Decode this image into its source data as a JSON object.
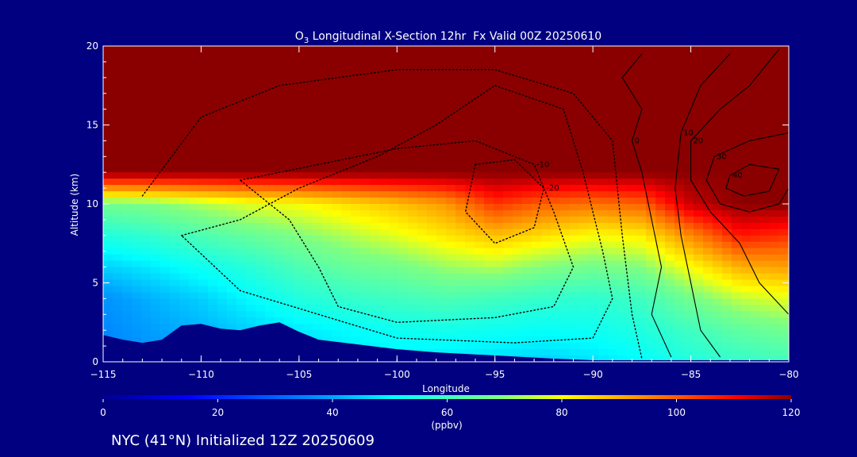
{
  "colors": {
    "background": "#000080",
    "text": "#ffffff",
    "terrain": "#000080",
    "contour": "#000000"
  },
  "chart_data": {
    "type": "heatmap",
    "title": "O3 Longitudinal X-Section 12hr  Fx Valid 00Z 20250610",
    "title_parts": {
      "main": "O",
      "subscript": "3",
      "rest": " Longitudinal X-Section 12hr  Fx Valid 00Z 20250610"
    },
    "xlabel": "Longitude",
    "ylabel": "Altitude (km)",
    "xlim": [
      -115,
      -80
    ],
    "ylim": [
      0,
      20
    ],
    "x_ticks": [
      -115,
      -110,
      -105,
      -100,
      -95,
      -90,
      -85,
      -80
    ],
    "x_tick_labels": [
      "−115",
      "−110",
      "−105",
      "−100",
      "−95",
      "−90",
      "−85",
      "−80"
    ],
    "y_ticks": [
      0,
      5,
      10,
      15,
      20
    ],
    "y_tick_labels": [
      "0",
      "5",
      "10",
      "15",
      "20"
    ],
    "colorbar": {
      "label": "(ppbv)",
      "range": [
        0,
        120
      ],
      "ticks": [
        0,
        20,
        40,
        60,
        80,
        100,
        120
      ],
      "tick_labels": [
        "0",
        "20",
        "40",
        "60",
        "80",
        "100",
        "120"
      ]
    },
    "field": {
      "variable": "O3 (ppbv)",
      "longitudes": [
        -115,
        -112.5,
        -110,
        -107.5,
        -105,
        -102.5,
        -100,
        -97.5,
        -95,
        -92.5,
        -90,
        -87.5,
        -85,
        -82.5,
        -80
      ],
      "altitudes_km": [
        0,
        2,
        4,
        6,
        8,
        10,
        12,
        14,
        16,
        18,
        20
      ],
      "values_ppbv": [
        [
          35,
          37,
          38,
          40,
          45,
          47,
          48,
          47,
          46,
          45,
          47,
          50,
          55,
          58,
          60
        ],
        [
          36,
          40,
          42,
          45,
          48,
          50,
          52,
          53,
          52,
          51,
          52,
          55,
          60,
          65,
          68
        ],
        [
          38,
          42,
          45,
          50,
          55,
          58,
          60,
          62,
          60,
          58,
          57,
          60,
          68,
          75,
          78
        ],
        [
          45,
          48,
          52,
          56,
          62,
          66,
          68,
          72,
          74,
          70,
          68,
          70,
          80,
          90,
          92
        ],
        [
          55,
          58,
          62,
          66,
          70,
          74,
          78,
          83,
          88,
          84,
          80,
          82,
          95,
          108,
          105
        ],
        [
          68,
          70,
          74,
          78,
          80,
          84,
          88,
          93,
          105,
          100,
          98,
          100,
          115,
          120,
          120
        ],
        [
          120,
          120,
          120,
          120,
          120,
          120,
          120,
          120,
          120,
          120,
          120,
          120,
          120,
          120,
          120
        ],
        [
          120,
          120,
          120,
          120,
          120,
          120,
          120,
          120,
          120,
          120,
          120,
          120,
          120,
          120,
          120
        ],
        [
          120,
          120,
          120,
          120,
          120,
          120,
          120,
          120,
          120,
          120,
          120,
          120,
          120,
          120,
          120
        ],
        [
          120,
          120,
          120,
          120,
          120,
          120,
          120,
          120,
          120,
          120,
          120,
          120,
          120,
          120,
          120
        ],
        [
          120,
          120,
          120,
          120,
          120,
          120,
          120,
          120,
          120,
          120,
          120,
          120,
          120,
          120,
          120
        ]
      ]
    },
    "terrain_km": {
      "longitudes": [
        -115,
        -114,
        -113,
        -112,
        -111,
        -110,
        -109,
        -108,
        -107,
        -106,
        -105,
        -104,
        -102,
        -100,
        -98,
        -95,
        -92,
        -90,
        -85,
        -80
      ],
      "heights": [
        1.7,
        1.4,
        1.2,
        1.4,
        2.3,
        2.4,
        2.1,
        2.0,
        2.3,
        2.5,
        1.9,
        1.4,
        1.1,
        0.8,
        0.6,
        0.4,
        0.2,
        0.1,
        0.1,
        0.1
      ]
    },
    "contours": [
      {
        "level": -10,
        "style": "dotted",
        "label": "-10",
        "points": [
          [
            -108,
            11.5
          ],
          [
            -104,
            12.5
          ],
          [
            -100,
            13.5
          ],
          [
            -96,
            14
          ],
          [
            -93,
            12.5
          ],
          [
            -92,
            9.5
          ],
          [
            -91,
            6
          ],
          [
            -92,
            3.5
          ],
          [
            -95,
            2.8
          ],
          [
            -100,
            2.5
          ],
          [
            -103,
            3.5
          ],
          [
            -104,
            6
          ],
          [
            -105.5,
            9
          ],
          [
            -108,
            11.5
          ]
        ]
      },
      {
        "level": -20,
        "style": "dotted",
        "label": "-20",
        "points": [
          [
            -96,
            12.5
          ],
          [
            -94,
            12.8
          ],
          [
            -92.5,
            11
          ],
          [
            -93,
            8.5
          ],
          [
            -95,
            7.5
          ],
          [
            -96.5,
            9.5
          ],
          [
            -96,
            12.5
          ]
        ]
      },
      {
        "level": -5,
        "style": "dotted",
        "label": "",
        "points": [
          [
            -111,
            8
          ],
          [
            -108,
            9
          ],
          [
            -105,
            11
          ],
          [
            -101,
            13
          ],
          [
            -98,
            15
          ],
          [
            -95,
            17.5
          ],
          [
            -91.5,
            16
          ],
          [
            -90.5,
            12
          ],
          [
            -89.5,
            7
          ],
          [
            -89,
            4
          ],
          [
            -90,
            1.5
          ],
          [
            -94,
            1.2
          ],
          [
            -100,
            1.5
          ],
          [
            -104,
            3
          ],
          [
            -108,
            4.5
          ],
          [
            -111,
            8
          ]
        ]
      },
      {
        "level": -2,
        "style": "dotted",
        "label": "",
        "points": [
          [
            -113,
            10.5
          ],
          [
            -110,
            15.5
          ],
          [
            -106,
            17.5
          ],
          [
            -100,
            18.5
          ],
          [
            -95,
            18.5
          ],
          [
            -91,
            17
          ],
          [
            -89,
            14
          ],
          [
            -88.5,
            8
          ],
          [
            -88,
            3
          ],
          [
            -87.5,
            0.2
          ]
        ]
      },
      {
        "level": 0,
        "style": "solid",
        "label": "0",
        "points": [
          [
            -87.5,
            19.5
          ],
          [
            -88.5,
            18
          ],
          [
            -87.5,
            16
          ],
          [
            -88,
            14
          ],
          [
            -87.5,
            12
          ],
          [
            -87,
            9
          ],
          [
            -86.5,
            6
          ],
          [
            -87,
            3
          ],
          [
            -86,
            0.3
          ]
        ]
      },
      {
        "level": 10,
        "style": "solid",
        "label": "10",
        "points": [
          [
            -83,
            19.5
          ],
          [
            -84.5,
            17.5
          ],
          [
            -85.5,
            14.5
          ],
          [
            -85.8,
            11
          ],
          [
            -85.5,
            8
          ],
          [
            -85,
            5
          ],
          [
            -84.5,
            2
          ],
          [
            -83.5,
            0.3
          ]
        ]
      },
      {
        "level": 20,
        "style": "solid",
        "label": "20",
        "points": [
          [
            -80.5,
            19.8
          ],
          [
            -82,
            17.5
          ],
          [
            -83.5,
            16
          ],
          [
            -85,
            14
          ],
          [
            -85,
            11.5
          ],
          [
            -84,
            9.5
          ],
          [
            -82.5,
            7.5
          ],
          [
            -81.5,
            5
          ],
          [
            -80,
            3
          ]
        ]
      },
      {
        "level": 30,
        "style": "solid",
        "label": "30",
        "points": [
          [
            -80,
            14.5
          ],
          [
            -82,
            14
          ],
          [
            -83.8,
            13
          ],
          [
            -84.2,
            11.5
          ],
          [
            -83.5,
            10
          ],
          [
            -82,
            9.5
          ],
          [
            -80.5,
            10
          ],
          [
            -80,
            11
          ]
        ]
      },
      {
        "level": 40,
        "style": "solid",
        "label": "40",
        "points": [
          [
            -80.5,
            12.2
          ],
          [
            -82,
            12.5
          ],
          [
            -83,
            11.8
          ],
          [
            -83.2,
            11
          ],
          [
            -82.3,
            10.5
          ],
          [
            -81,
            10.8
          ],
          [
            -80.5,
            12.2
          ]
        ]
      }
    ]
  },
  "footer": {
    "station_text": "NYC (41°N) Initialized 12Z 20250609"
  }
}
